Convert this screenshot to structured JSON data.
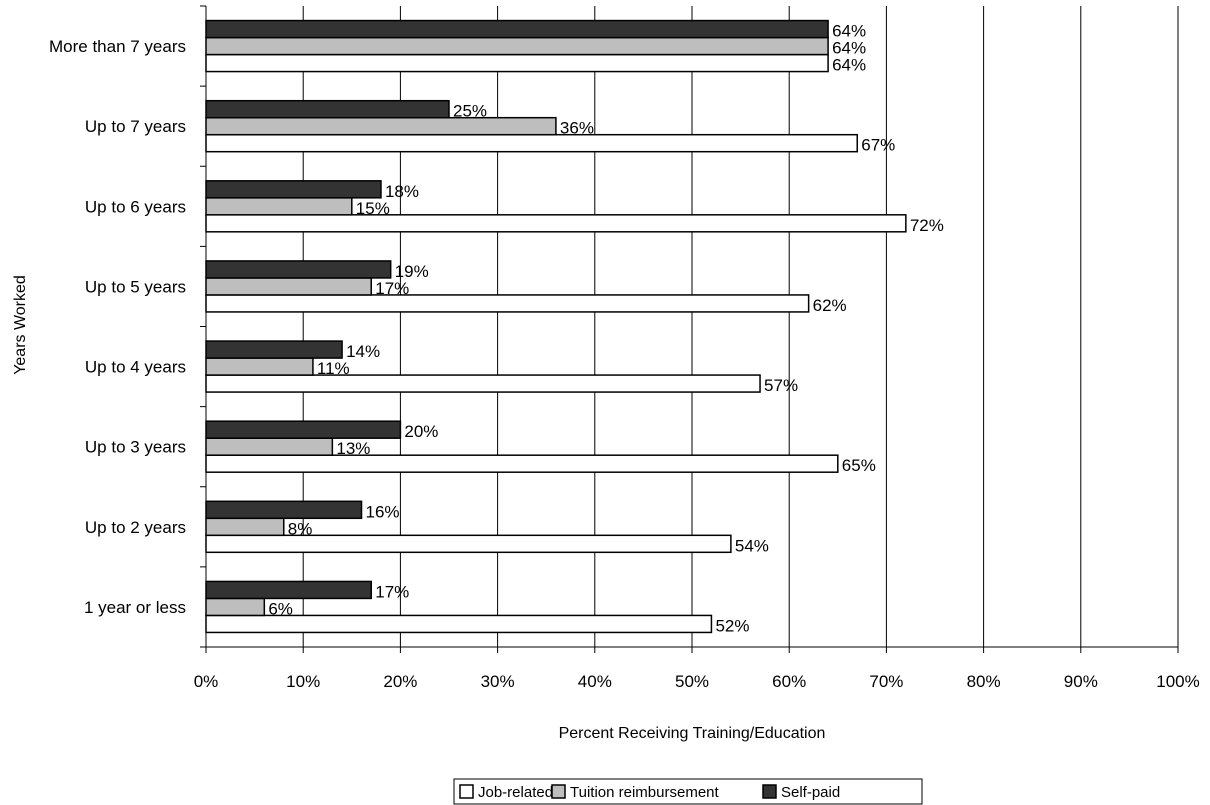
{
  "chart_data": {
    "type": "bar",
    "orientation": "horizontal",
    "xlabel": "Percent Receiving Training/Education",
    "ylabel": "Years Worked",
    "xlim": [
      0,
      100
    ],
    "xticks": [
      "0%",
      "10%",
      "20%",
      "30%",
      "40%",
      "50%",
      "60%",
      "70%",
      "80%",
      "90%",
      "100%"
    ],
    "grid": "vertical",
    "legend_position": "bottom",
    "categories": [
      "1 year or less",
      "Up to 2 years",
      "Up to 3 years",
      "Up to 4 years",
      "Up to 5 years",
      "Up to 6 years",
      "Up to 7 years",
      "More than 7 years"
    ],
    "series": [
      {
        "name": "Job-related",
        "color": "#ffffff",
        "values": [
          52,
          54,
          65,
          57,
          62,
          72,
          67,
          64
        ],
        "labels": [
          "52%",
          "54%",
          "65%",
          "57%",
          "62%",
          "72%",
          "67%",
          "64%"
        ]
      },
      {
        "name": "Tuition reimbursement",
        "color": "#bebebe",
        "values": [
          6,
          8,
          13,
          11,
          17,
          15,
          36,
          64
        ],
        "labels": [
          "6%",
          "8%",
          "13%",
          "11%",
          "17%",
          "15%",
          "36%",
          "64%"
        ]
      },
      {
        "name": "Self-paid",
        "color": "#333333",
        "values": [
          17,
          16,
          20,
          14,
          19,
          18,
          25,
          64
        ],
        "labels": [
          "17%",
          "16%",
          "20%",
          "14%",
          "19%",
          "18%",
          "25%",
          "64%"
        ]
      }
    ]
  }
}
